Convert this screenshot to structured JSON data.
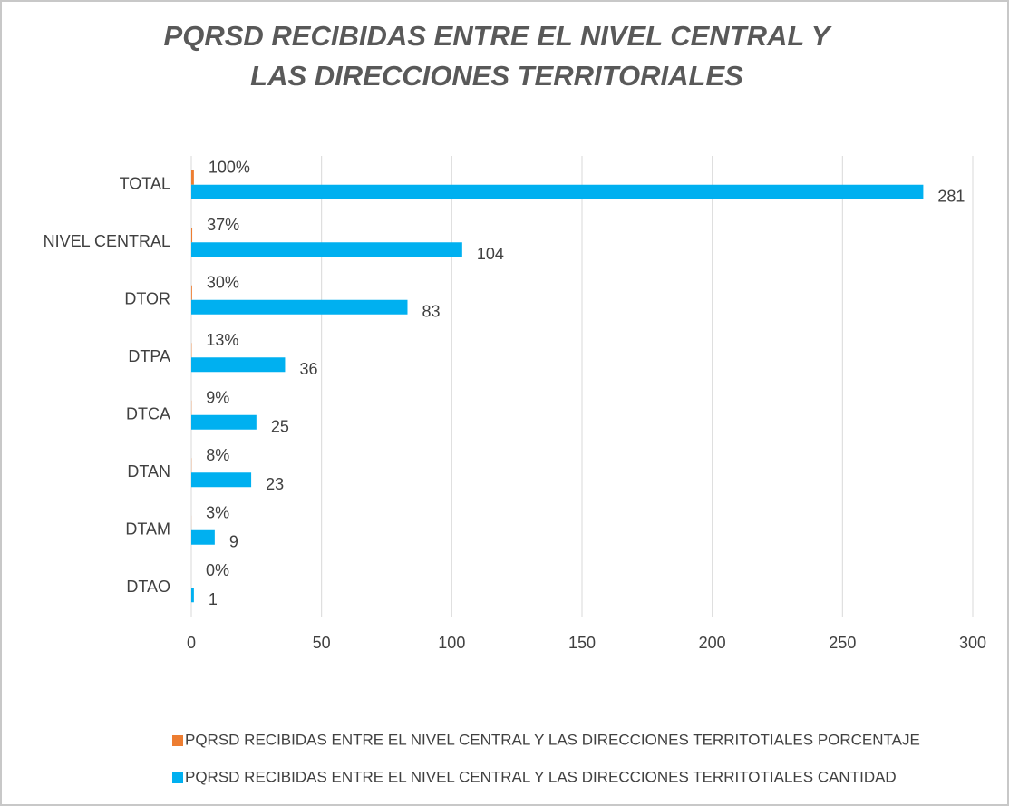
{
  "chart_data": {
    "type": "hbar",
    "title": "PQRSD RECIBIDAS ENTRE EL NIVEL CENTRAL Y LAS DIRECCIONES TERRITORIALES",
    "categories": [
      "TOTAL",
      "NIVEL CENTRAL",
      "DTOR",
      "DTPA",
      "DTCA",
      "DTAN",
      "DTAM",
      "DTAO"
    ],
    "series": [
      {
        "name": "PQRSD RECIBIDAS ENTRE EL NIVEL CENTRAL Y LAS DIRECCIONES TERRITOTIALES PORCENTAJE",
        "color": "#ed7d31",
        "values": [
          1,
          0.37,
          0.3,
          0.13,
          0.09,
          0.08,
          0.03,
          0
        ],
        "value_labels": [
          "100%",
          "37%",
          "30%",
          "13%",
          "9%",
          "8%",
          "3%",
          "0%"
        ]
      },
      {
        "name": "PQRSD RECIBIDAS ENTRE EL NIVEL CENTRAL Y LAS DIRECCIONES TERRITOTIALES CANTIDAD",
        "color": "#00b0f0",
        "values": [
          281,
          104,
          83,
          36,
          25,
          23,
          9,
          1
        ]
      }
    ],
    "xlim": [
      0,
      300
    ],
    "xticks": [
      0,
      50,
      100,
      150,
      200,
      250,
      300
    ],
    "grid": true
  }
}
